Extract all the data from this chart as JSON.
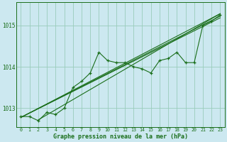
{
  "bg_color": "#cce8f0",
  "grid_color": "#99ccbb",
  "line_color": "#1a6e1a",
  "xlabel": "Graphe pression niveau de la mer (hPa)",
  "xlabel_color": "#1a6e1a",
  "xlim": [
    -0.5,
    23.5
  ],
  "ylim": [
    1012.55,
    1015.55
  ],
  "yticks": [
    1013,
    1014,
    1015
  ],
  "xtick_labels": [
    "0",
    "1",
    "2",
    "3",
    "4",
    "5",
    "6",
    "7",
    "8",
    "9",
    "10",
    "11",
    "12",
    "13",
    "14",
    "15",
    "16",
    "17",
    "18",
    "19",
    "20",
    "21",
    "22",
    "23"
  ],
  "zigzag_data": [
    1012.8,
    1012.8,
    1012.7,
    1012.9,
    1012.85,
    1013.0,
    1013.5,
    1013.65,
    1013.85,
    1014.35,
    1014.15,
    1014.1,
    1014.1,
    1014.0,
    1013.95,
    1013.85,
    1014.15,
    1014.2,
    1014.35,
    1014.1,
    1014.1,
    1015.0,
    1015.1,
    1015.25
  ],
  "trend_lines": [
    {
      "x0": 0,
      "y0": 1012.78,
      "x1": 23,
      "y1": 1015.28
    },
    {
      "x0": 0,
      "y0": 1012.78,
      "x1": 23,
      "y1": 1015.22
    },
    {
      "x0": 0,
      "y0": 1012.78,
      "x1": 23,
      "y1": 1015.18
    },
    {
      "x0": 2,
      "y0": 1012.72,
      "x1": 23,
      "y1": 1015.28
    }
  ],
  "marker_x": [
    0,
    1,
    2,
    3,
    4,
    5,
    6,
    7,
    8,
    9,
    10,
    11,
    12,
    13,
    14,
    15,
    16,
    17,
    18,
    19,
    20,
    21,
    22,
    23
  ],
  "figwidth": 3.2,
  "figheight": 2.0,
  "dpi": 100
}
